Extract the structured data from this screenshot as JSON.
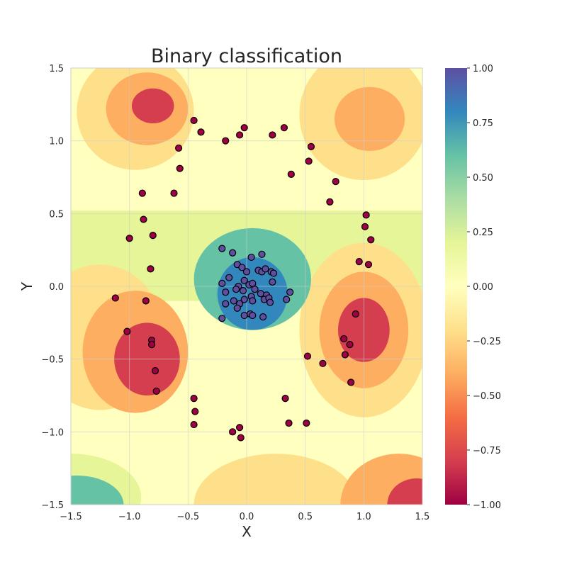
{
  "chart_data": {
    "type": "scatter",
    "title": "Binary classification",
    "xlabel": "X",
    "ylabel": "Y",
    "xlim": [
      -1.5,
      1.5
    ],
    "ylim": [
      -1.5,
      1.5
    ],
    "x_ticks": [
      "−1.5",
      "−1.0",
      "−0.5",
      "0.0",
      "0.5",
      "1.0",
      "1.5"
    ],
    "y_ticks": [
      "−1.5",
      "−1.0",
      "−0.5",
      "0.0",
      "0.5",
      "1.0",
      "1.5"
    ],
    "grid": true,
    "colorbar": {
      "range": [
        -1.0,
        1.0
      ],
      "tick_values": [
        1.0,
        0.75,
        0.5,
        0.25,
        0.0,
        -0.25,
        -0.5,
        -0.75,
        -1.0
      ],
      "tick_labels": [
        "1.00",
        "0.75",
        "0.50",
        "0.25",
        "0.00",
        "−0.25",
        "−0.50",
        "−0.75",
        "−1.00"
      ],
      "colormap": [
        "#9e0142",
        "#d53e4f",
        "#f46d43",
        "#fdae61",
        "#fee08b",
        "#ffffbf",
        "#e6f598",
        "#abdda4",
        "#66c2a5",
        "#3288bd",
        "#5e4fa2"
      ]
    },
    "background_contour": {
      "description_levels": [
        -1.0,
        -0.75,
        -0.5,
        -0.25,
        0.0,
        0.25,
        0.5,
        0.75,
        1.0
      ]
    },
    "series": [
      {
        "class": -1,
        "color": "#9e0142",
        "points": [
          [
            -0.45,
            1.14
          ],
          [
            -0.39,
            1.06
          ],
          [
            -0.18,
            1.0
          ],
          [
            -0.06,
            1.04
          ],
          [
            -0.02,
            1.09
          ],
          [
            0.22,
            1.04
          ],
          [
            0.32,
            1.09
          ],
          [
            -0.58,
            0.95
          ],
          [
            -0.57,
            0.81
          ],
          [
            0.55,
            0.96
          ],
          [
            0.53,
            0.86
          ],
          [
            0.38,
            0.77
          ],
          [
            0.76,
            0.72
          ],
          [
            -0.89,
            0.64
          ],
          [
            -0.62,
            0.64
          ],
          [
            0.71,
            0.58
          ],
          [
            -0.88,
            0.46
          ],
          [
            1.02,
            0.49
          ],
          [
            -1.0,
            0.33
          ],
          [
            -0.8,
            0.35
          ],
          [
            1.01,
            0.41
          ],
          [
            1.06,
            0.32
          ],
          [
            -0.82,
            0.12
          ],
          [
            0.96,
            0.17
          ],
          [
            1.04,
            0.15
          ],
          [
            -1.12,
            -0.08
          ],
          [
            -0.86,
            -0.1
          ],
          [
            0.93,
            -0.19
          ],
          [
            -1.02,
            -0.31
          ],
          [
            -0.81,
            -0.37
          ],
          [
            -0.81,
            -0.4
          ],
          [
            0.83,
            -0.36
          ],
          [
            0.88,
            -0.4
          ],
          [
            0.52,
            -0.48
          ],
          [
            0.84,
            -0.47
          ],
          [
            0.65,
            -0.53
          ],
          [
            -0.78,
            -0.58
          ],
          [
            -0.77,
            -0.72
          ],
          [
            0.89,
            -0.66
          ],
          [
            -0.45,
            -0.77
          ],
          [
            0.33,
            -0.77
          ],
          [
            -0.44,
            -0.86
          ],
          [
            -0.45,
            -0.95
          ],
          [
            0.36,
            -0.94
          ],
          [
            0.51,
            -0.94
          ],
          [
            -0.06,
            -0.97
          ],
          [
            -0.12,
            -1.0
          ],
          [
            -0.05,
            -1.04
          ]
        ]
      },
      {
        "class": 1,
        "color": "#5e4fa2",
        "points": [
          [
            -0.21,
            0.26
          ],
          [
            -0.12,
            0.23
          ],
          [
            0.13,
            0.22
          ],
          [
            0.04,
            0.2
          ],
          [
            -0.08,
            0.15
          ],
          [
            -0.04,
            0.13
          ],
          [
            0.0,
            0.1
          ],
          [
            0.1,
            0.11
          ],
          [
            0.13,
            0.1
          ],
          [
            0.16,
            0.12
          ],
          [
            0.21,
            0.1
          ],
          [
            0.23,
            0.09
          ],
          [
            -0.15,
            0.06
          ],
          [
            -0.02,
            0.04
          ],
          [
            0.02,
            0.01
          ],
          [
            0.05,
            0.02
          ],
          [
            0.22,
            0.03
          ],
          [
            -0.21,
            0.02
          ],
          [
            -0.07,
            0.0
          ],
          [
            -0.09,
            -0.02
          ],
          [
            0.07,
            -0.02
          ],
          [
            -0.03,
            -0.03
          ],
          [
            0.12,
            -0.05
          ],
          [
            -0.18,
            -0.04
          ],
          [
            0.17,
            -0.06
          ],
          [
            0.37,
            -0.04
          ],
          [
            0.04,
            -0.07
          ],
          [
            -0.11,
            -0.1
          ],
          [
            -0.02,
            -0.09
          ],
          [
            0.05,
            -0.1
          ],
          [
            0.15,
            -0.09
          ],
          [
            0.19,
            -0.08
          ],
          [
            -0.18,
            -0.12
          ],
          [
            -0.06,
            -0.12
          ],
          [
            0.2,
            -0.11
          ],
          [
            0.34,
            -0.09
          ],
          [
            -0.08,
            -0.15
          ],
          [
            0.03,
            -0.19
          ],
          [
            0.05,
            -0.2
          ],
          [
            -0.02,
            -0.2
          ],
          [
            0.14,
            -0.21
          ],
          [
            -0.21,
            -0.22
          ]
        ]
      }
    ]
  }
}
